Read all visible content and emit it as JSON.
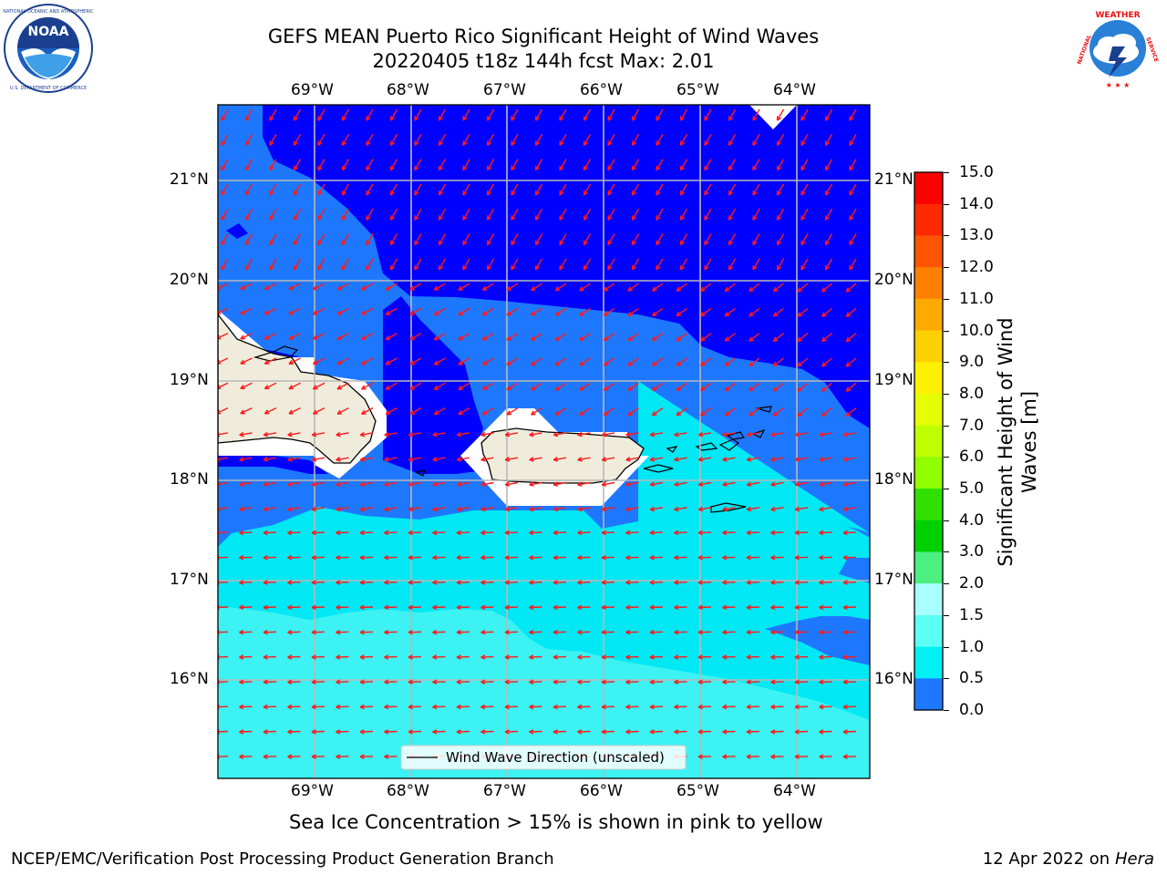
{
  "header": {
    "title_line1": "GEFS MEAN Puerto Rico Significant Height of Wind Waves",
    "title_line2": "20220405 t18z 144h fcst   Max: 2.01"
  },
  "logos": {
    "left": {
      "name": "NOAA",
      "ring_text": "NATIONAL OCEANIC AND ATMOSPHERIC ADMINISTRATION • U.S. DEPARTMENT OF COMMERCE"
    },
    "right": {
      "name": "NATIONAL WEATHER SERVICE"
    }
  },
  "map": {
    "lon_labels": [
      "69°W",
      "68°W",
      "67°W",
      "66°W",
      "65°W",
      "64°W"
    ],
    "lat_labels": [
      "21°N",
      "20°N",
      "19°N",
      "18°N",
      "17°N",
      "16°N"
    ],
    "legend_label": "Wind Wave Direction (unscaled)",
    "colors": {
      "band_0_0p5": "#0000ff",
      "band_0p5_1": "#1e78ff",
      "band_1_1p5": "#00e8f4",
      "band_1p5_2": "#3cf2f2",
      "land": "#efecdc",
      "arrow": "#ff1a1a",
      "grid": "#b0b0b0"
    }
  },
  "colorbar": {
    "label": "Significant Height of Wind Waves [m]",
    "label_line1": "Significant Height of Wind",
    "label_line2": "Waves [m]",
    "ticks": [
      "15.0",
      "14.0",
      "13.0",
      "12.0",
      "11.0",
      "10.0",
      "9.0",
      "8.0",
      "7.0",
      "6.0",
      "5.0",
      "4.0",
      "3.0",
      "2.0",
      "1.5",
      "1.0",
      "0.5",
      "0.0"
    ],
    "colors_top_to_bottom": [
      "#ff0000",
      "#ff2a00",
      "#ff5500",
      "#ff8000",
      "#ffaa00",
      "#ffd000",
      "#fff000",
      "#e6ff00",
      "#bdff00",
      "#90ff00",
      "#30e000",
      "#00d000",
      "#4cf080",
      "#a8ffff",
      "#5cfff4",
      "#00f0f4",
      "#1e78ff",
      "#0000ff"
    ]
  },
  "notes": {
    "sea_ice": "Sea Ice Concentration > 15% is shown in pink to yellow"
  },
  "footer": {
    "left": "NCEP/EMC/Verification Post Processing Product Generation Branch",
    "right_date": "12 Apr 2022 on ",
    "right_host": "Hera"
  }
}
